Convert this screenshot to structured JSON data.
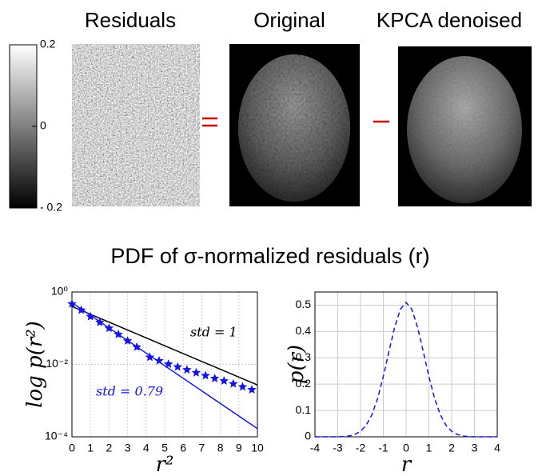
{
  "panel_titles": [
    "Residuals",
    "Original",
    "KPCA denoised"
  ],
  "colorbar": {
    "lim": [
      -0.2,
      0.2
    ],
    "ticks": [
      0.2,
      0,
      {
        "value": -0.2,
        "label": "- 0.2"
      }
    ]
  },
  "figure_title": "PDF of σ-normalized residuals (r)",
  "chart_data": [
    {
      "type": "line",
      "ylog": true,
      "grid": true,
      "xlabel": "r²",
      "ylabel": "log p(r²)",
      "xlim": [
        0,
        10
      ],
      "xticks": [
        0,
        1,
        2,
        3,
        4,
        5,
        6,
        7,
        8,
        9,
        10
      ],
      "ylim": [
        0.0001,
        1
      ],
      "yticks": [
        {
          "value": 1,
          "label": "10⁰"
        },
        {
          "value": 0.01,
          "label": "10⁻²"
        },
        {
          "value": 0.0001,
          "label": "10⁻⁴"
        }
      ],
      "series": [
        {
          "color": "#000000",
          "x": [
            0,
            10
          ],
          "values": [
            0.399,
            0.0027
          ]
        },
        {
          "color": "#1414e6",
          "x": [
            0,
            10
          ],
          "values": [
            0.505,
            0.000168
          ]
        },
        {
          "color": "#1414e6",
          "marker": "star",
          "x": [
            0,
            0.5,
            1,
            1.5,
            2,
            2.5,
            3,
            3.5,
            4.2,
            4.7,
            5.2,
            5.7,
            6.2,
            6.7,
            7.2,
            7.7,
            8.2,
            8.7,
            9.2,
            9.7
          ],
          "values": [
            0.468,
            0.316,
            0.209,
            0.145,
            0.1,
            0.0676,
            0.0447,
            0.0302,
            0.0158,
            0.0126,
            0.0102,
            0.0085,
            0.0071,
            0.0059,
            0.0049,
            0.0041,
            0.0035,
            0.0029,
            0.0024,
            0.002
          ]
        }
      ],
      "annotations": [
        {
          "text": "std = 1",
          "color": "#000000"
        },
        {
          "text": "std = 0.79",
          "color": "#1414e6"
        }
      ]
    },
    {
      "type": "line",
      "grid": true,
      "xlabel": "r",
      "ylabel": "p(r)",
      "xlim": [
        -4,
        4
      ],
      "xticks": [
        -4,
        -3,
        -2,
        -1,
        0,
        1,
        2,
        3,
        4
      ],
      "ylim": [
        0,
        0.55
      ],
      "yticks": [
        0,
        0.1,
        0.2,
        0.3,
        0.4,
        0.5
      ],
      "series": [
        {
          "color": "#1414e6",
          "dashed": true,
          "x": [
            -4,
            -3.75,
            -3.5,
            -3.25,
            -3,
            -2.75,
            -2.5,
            -2.25,
            -2,
            -1.75,
            -1.5,
            -1.25,
            -1,
            -0.75,
            -0.5,
            -0.25,
            0,
            0.25,
            0.5,
            0.75,
            1,
            1.25,
            1.5,
            1.75,
            2,
            2.25,
            2.5,
            2.75,
            3,
            3.25,
            3.5,
            3.75,
            4
          ],
          "values": [
            0,
            0,
            0,
            0,
            0,
            0.001,
            0.003,
            0.009,
            0.021,
            0.044,
            0.084,
            0.146,
            0.229,
            0.325,
            0.417,
            0.485,
            0.51,
            0.485,
            0.417,
            0.325,
            0.229,
            0.146,
            0.084,
            0.044,
            0.021,
            0.009,
            0.003,
            0.001,
            0,
            0,
            0,
            0,
            0
          ]
        }
      ]
    }
  ]
}
